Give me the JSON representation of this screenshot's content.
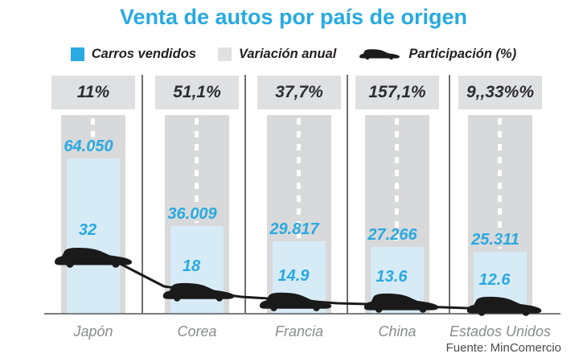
{
  "title": "Venta de autos por país de origen",
  "legend": {
    "items": [
      {
        "label": "Carros vendidos",
        "swatch": "square-icon",
        "color": "#29abe2"
      },
      {
        "label": "Variación anual",
        "swatch": "square-icon",
        "color": "#e0e1e2"
      },
      {
        "label": "Participación (%)",
        "swatch": "car-icon",
        "color": "#1a1a1a"
      }
    ]
  },
  "source": "Fuente: MinComercio",
  "colors": {
    "accent_cyan": "#29a9e1",
    "title_blue": "#27aae1",
    "bar_blue": "#d7ebf7",
    "road_gray": "#d8d9da",
    "badge_gray": "#dfe0e1",
    "car_black": "#1a1a1a",
    "muted_gray": "#8a8c8e",
    "text_dark": "#231f20"
  },
  "chart_data": {
    "type": "bar",
    "title": "Venta de autos por país de origen",
    "categories": [
      "Japón",
      "Corea",
      "Francia",
      "China",
      "Estados Unidos"
    ],
    "series": [
      {
        "name": "Carros vendidos",
        "type": "bar",
        "color": "#d7ebf7",
        "values": [
          64050,
          36009,
          29817,
          27266,
          25311
        ],
        "labels": [
          "64.050",
          "36.009",
          "29.817",
          "27.266",
          "25.311"
        ]
      },
      {
        "name": "Variación anual",
        "type": "badge",
        "color": "#dfe0e1",
        "labels": [
          "11%",
          "51,1%",
          "37,7%",
          "157,1%",
          "9,,33%%"
        ]
      },
      {
        "name": "Participación (%)",
        "type": "pictogram-line",
        "values": [
          32,
          18,
          14.9,
          13.6,
          12.6
        ],
        "labels": [
          "32",
          "18",
          "14.9",
          "13.6",
          "12.6"
        ]
      }
    ],
    "xlabel": "",
    "ylabel": "",
    "ylim": [
      0,
      82000
    ],
    "grid": false,
    "legend_position": "top",
    "source": "Fuente: MinComercio"
  }
}
